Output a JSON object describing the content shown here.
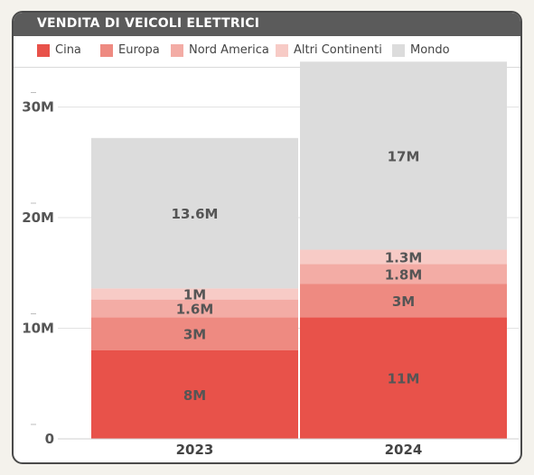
{
  "header": {
    "title": "VENDITA DI VEICOLI ELETTRICI"
  },
  "chart_data": {
    "type": "bar",
    "stacked": true,
    "title": "VENDITA DI VEICOLI ELETTRICI",
    "categories": [
      "2023",
      "2024"
    ],
    "series": [
      {
        "name": "Cina",
        "values": [
          8,
          11
        ],
        "labels": [
          "8M",
          "11M"
        ],
        "color": "#e8524a"
      },
      {
        "name": "Europa",
        "values": [
          3,
          3
        ],
        "labels": [
          "3M",
          "3M"
        ],
        "color": "#ee8a81"
      },
      {
        "name": "Nord America",
        "values": [
          1.6,
          1.8
        ],
        "labels": [
          "1.6M",
          "1.8M"
        ],
        "color": "#f3aca5"
      },
      {
        "name": "Altri Continenti",
        "values": [
          1,
          1.3
        ],
        "labels": [
          "1M",
          "1.3M"
        ],
        "color": "#f7cbc6"
      },
      {
        "name": "Mondo",
        "values": [
          13.6,
          17
        ],
        "labels": [
          "13.6M",
          "17M"
        ],
        "color": "#dcdcdc"
      }
    ],
    "y_ticks": [
      0,
      10,
      20,
      30
    ],
    "y_tick_labels": [
      "0",
      "10M",
      "20M",
      "30M"
    ],
    "ylim": [
      0,
      34
    ],
    "xlabel": "",
    "ylabel": "",
    "legend_position": "top",
    "grid": true
  }
}
